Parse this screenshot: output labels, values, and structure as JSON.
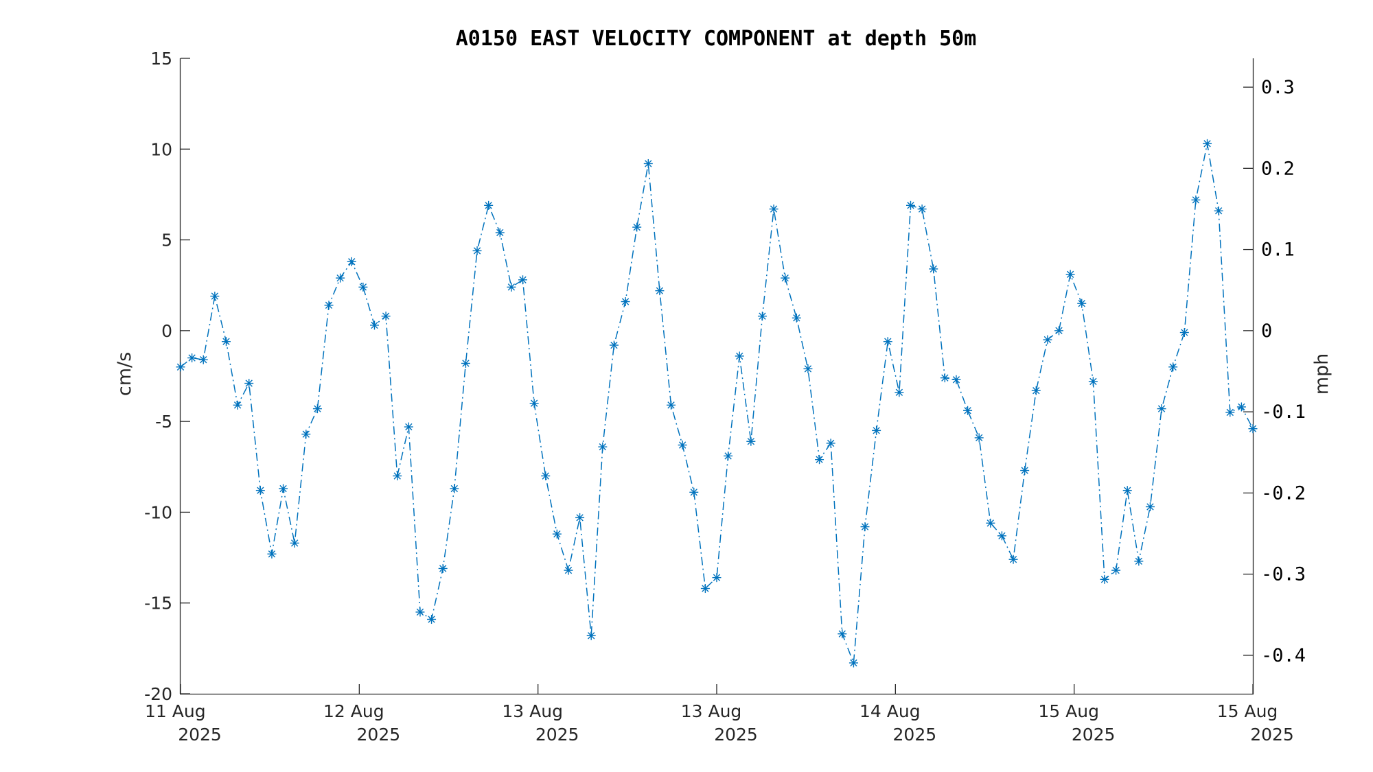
{
  "chart_data": {
    "type": "line",
    "title": "A0150 EAST VELOCITY COMPONENT at depth 50m",
    "ylabel": "cm/s",
    "y2label": "mph",
    "ylim": [
      -20,
      15
    ],
    "yticks": [
      "15",
      "10",
      "5",
      "0",
      "-5",
      "-10",
      "-15",
      "-20"
    ],
    "y2ticks": [
      "0.3",
      "0.2",
      "0.1",
      "0",
      "-0.1",
      "-0.2",
      "-0.3",
      "-0.4"
    ],
    "xticks": [
      {
        "day": "11 Aug",
        "year": "2025"
      },
      {
        "day": "12 Aug",
        "year": "2025"
      },
      {
        "day": "13 Aug",
        "year": "2025"
      },
      {
        "day": "13 Aug",
        "year": "2025"
      },
      {
        "day": "14 Aug",
        "year": "2025"
      },
      {
        "day": "15 Aug",
        "year": "2025"
      },
      {
        "day": "15 Aug",
        "year": "2025"
      }
    ],
    "grid": false,
    "series_color": "#0072BD",
    "line_style": "dash-dot",
    "marker": "asterisk",
    "series": [
      {
        "values": [
          -2.0,
          -1.5,
          -1.6,
          1.9,
          -0.6,
          -4.1,
          -2.9,
          -8.8,
          -12.3,
          -8.7,
          -11.7,
          -5.7,
          -4.3,
          1.4,
          2.9,
          3.8,
          2.4,
          0.3,
          0.8,
          -8.0,
          -5.3,
          -15.5,
          -15.9,
          -13.1,
          -8.7,
          -1.8,
          4.4,
          6.9,
          5.4,
          2.4,
          2.8,
          -4.0,
          -8.0,
          -11.2,
          -13.2,
          -10.3,
          -16.8,
          -6.4,
          -0.8,
          1.6,
          5.7,
          9.2,
          2.2,
          -4.1,
          -6.3,
          -8.9,
          -14.2,
          -13.6,
          -6.9,
          -1.4,
          -6.1,
          0.8,
          6.7,
          2.9,
          0.7,
          -2.1,
          -7.1,
          -6.2,
          -16.7,
          -18.3,
          -10.8,
          -5.5,
          -0.6,
          -3.4,
          6.9,
          6.7,
          3.4,
          -2.6,
          -2.7,
          -4.4,
          -5.9,
          -10.6,
          -11.3,
          -12.6,
          -7.7,
          -3.3,
          -0.5,
          0.0,
          3.1,
          1.5,
          -2.8,
          -13.7,
          -13.2,
          -8.8,
          -12.7,
          -9.7,
          -4.3,
          -2.0,
          -0.1,
          7.2,
          10.3,
          6.6,
          -4.5,
          -4.2,
          -5.4
        ]
      }
    ]
  }
}
